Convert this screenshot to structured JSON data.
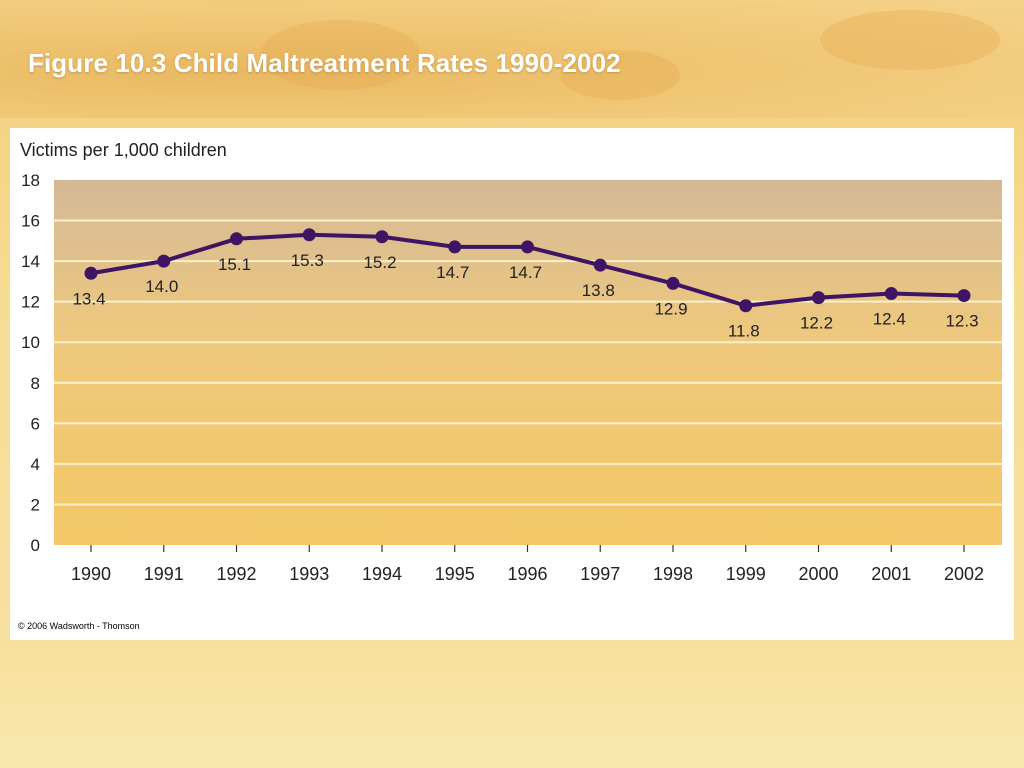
{
  "slide": {
    "title": "Figure 10.3 Child Maltreatment Rates 1990-2002",
    "copyright": "© 2006 Wadsworth - Thomson"
  },
  "colors": {
    "line": "#3f1464",
    "grid": "#fbf1c8",
    "plot_top": "#d4b998",
    "plot_bottom": "#f3c766",
    "title": "#ffffff"
  },
  "chart_data": {
    "type": "line",
    "title": "",
    "ylabel": "Victims per 1,000 children",
    "xlabel": "",
    "x": [
      "1990",
      "1991",
      "1992",
      "1993",
      "1994",
      "1995",
      "1996",
      "1997",
      "1998",
      "1999",
      "2000",
      "2001",
      "2002"
    ],
    "y_ticks": [
      "0",
      "2",
      "4",
      "6",
      "8",
      "10",
      "12",
      "14",
      "16",
      "18"
    ],
    "ylim": [
      0,
      18
    ],
    "grid": true,
    "series": [
      {
        "values": [
          13.4,
          14.0,
          15.1,
          15.3,
          15.2,
          14.7,
          14.7,
          13.8,
          12.9,
          11.8,
          12.2,
          12.4,
          12.3
        ],
        "labels": [
          "13.4",
          "14.0",
          "15.1",
          "15.3",
          "15.2",
          "14.7",
          "14.7",
          "13.8",
          "12.9",
          "11.8",
          "12.2",
          "12.4",
          "12.3"
        ]
      }
    ]
  }
}
